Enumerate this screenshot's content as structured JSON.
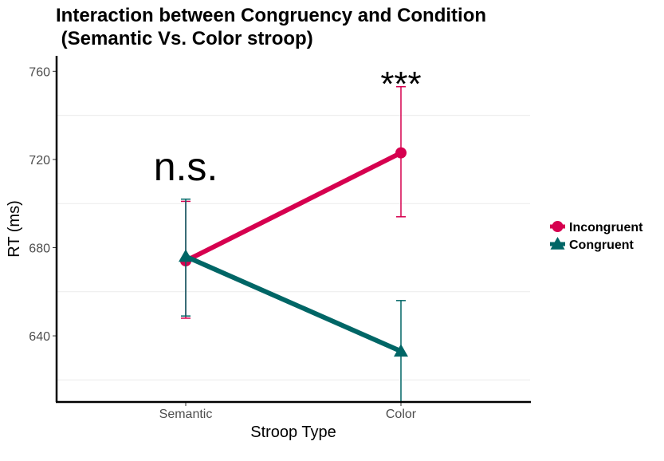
{
  "chart_data": {
    "type": "line",
    "title_line1": "Interaction between Congruency and Condition",
    "title_line2": " (Semantic Vs. Color stroop)",
    "xlabel": "Stroop Type",
    "ylabel": "RT (ms)",
    "categories": [
      "Semantic",
      "Color"
    ],
    "ylim": [
      610,
      767
    ],
    "yticks": [
      640,
      680,
      720,
      760
    ],
    "grid": "horizontal minor lines",
    "legend_position": "right",
    "series": [
      {
        "name": "Incongruent",
        "color": "#d6004f",
        "marker": "circle",
        "values": [
          674,
          723
        ],
        "error_low": [
          648,
          694
        ],
        "error_high": [
          701,
          753
        ]
      },
      {
        "name": "Congruent",
        "color": "#006666",
        "marker": "triangle",
        "values": [
          676,
          633
        ],
        "error_low": [
          649,
          610
        ],
        "error_high": [
          702,
          656
        ]
      }
    ],
    "annotations": [
      {
        "text": "n.s.",
        "category": "Semantic",
        "y": 716
      },
      {
        "text": "***",
        "category": "Color",
        "y": 759
      }
    ]
  }
}
